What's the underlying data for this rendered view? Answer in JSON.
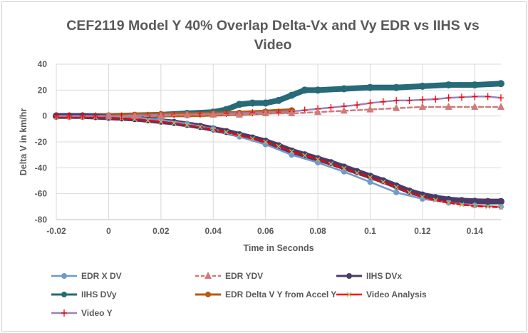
{
  "chart_data": {
    "type": "line",
    "title": "CEF2119 Model Y 40% Overlap Delta-Vx  and Vy EDR vs IIHS vs Video",
    "xlabel": "Time in Seconds",
    "ylabel": "Delta V in km/hr",
    "xlim": [
      -0.02,
      0.15
    ],
    "ylim": [
      -80,
      40
    ],
    "xticks": [
      "-0.02",
      "0",
      "0.02",
      "0.04",
      "0.06",
      "0.08",
      "0.1",
      "0.12",
      "0.14"
    ],
    "xtick_values": [
      -0.02,
      0,
      0.02,
      0.04,
      0.06,
      0.08,
      0.1,
      0.12,
      0.14
    ],
    "yticks": [
      "40",
      "20",
      "0",
      "-20",
      "-40",
      "-60",
      "-80"
    ],
    "ytick_values": [
      40,
      20,
      0,
      -20,
      -40,
      -60,
      -80
    ],
    "grid": true,
    "legend_position": "bottom",
    "series": [
      {
        "name": "EDR X DV",
        "color": "#7099cc",
        "marker": "circle",
        "dash": false,
        "width": 2.5,
        "x": [
          0,
          0.01,
          0.02,
          0.03,
          0.04,
          0.05,
          0.06,
          0.07,
          0.08,
          0.09,
          0.1,
          0.11,
          0.12,
          0.13,
          0.14,
          0.15
        ],
        "y": [
          0,
          -1,
          -3,
          -6,
          -10,
          -16,
          -22,
          -30,
          -36,
          -43,
          -51,
          -59,
          -64,
          -67,
          -69,
          -70
        ]
      },
      {
        "name": "EDR YDV",
        "color": "#d07a7a",
        "marker": "triangle",
        "dash": true,
        "width": 2.5,
        "x": [
          0,
          0.01,
          0.02,
          0.03,
          0.04,
          0.05,
          0.06,
          0.07,
          0.08,
          0.09,
          0.1,
          0.11,
          0.12,
          0.13,
          0.14,
          0.15
        ],
        "y": [
          0,
          0,
          0,
          1,
          1,
          1,
          2,
          2,
          3,
          4,
          5,
          6,
          7,
          7,
          7,
          7
        ]
      },
      {
        "name": "IIHS DVx",
        "color": "#4b3b66",
        "marker": "circle",
        "dash": false,
        "width": 8,
        "x": [
          -0.02,
          -0.015,
          -0.01,
          -0.005,
          0,
          0.005,
          0.01,
          0.015,
          0.02,
          0.025,
          0.03,
          0.035,
          0.04,
          0.045,
          0.05,
          0.055,
          0.06,
          0.065,
          0.07,
          0.075,
          0.08,
          0.085,
          0.09,
          0.095,
          0.1,
          0.105,
          0.11,
          0.115,
          0.12,
          0.125,
          0.13,
          0.135,
          0.14,
          0.145,
          0.15
        ],
        "y": [
          0,
          0,
          0,
          -0.5,
          -1,
          -1.5,
          -2,
          -3,
          -4,
          -5,
          -6.5,
          -8,
          -10,
          -12,
          -14.5,
          -17,
          -19.5,
          -23,
          -27,
          -30,
          -33,
          -36,
          -39.5,
          -43,
          -46.5,
          -50,
          -54,
          -58,
          -61,
          -63,
          -64.5,
          -65.3,
          -65.8,
          -66,
          -66
        ]
      },
      {
        "name": "IIHS DVy",
        "color": "#276a78",
        "marker": "circle",
        "dash": false,
        "width": 8,
        "x": [
          -0.02,
          -0.01,
          0,
          0.01,
          0.02,
          0.03,
          0.04,
          0.045,
          0.05,
          0.055,
          0.06,
          0.065,
          0.07,
          0.075,
          0.08,
          0.09,
          0.1,
          0.11,
          0.12,
          0.13,
          0.14,
          0.15
        ],
        "y": [
          0,
          0,
          0,
          0.5,
          1,
          2,
          3,
          5,
          9,
          10,
          10,
          12,
          16,
          20,
          20,
          21,
          22,
          22,
          23,
          24,
          24,
          25
        ]
      },
      {
        "name": "EDR Delta V Y from Accel Y",
        "color": "#b85a12",
        "marker": "circle",
        "dash": false,
        "width": 7,
        "x": [
          -0.02,
          -0.01,
          0,
          0.01,
          0.02,
          0.03,
          0.04,
          0.05,
          0.06,
          0.07
        ],
        "y": [
          0,
          0,
          0,
          0.5,
          1,
          1,
          1.5,
          2,
          3,
          4
        ]
      },
      {
        "name": "Video Analysis",
        "color": "#ff0000",
        "marker": "x",
        "markerColor": "#a8c070",
        "dash": true,
        "width": 2.5,
        "x": [
          -0.02,
          -0.015,
          -0.01,
          -0.005,
          0,
          0.005,
          0.01,
          0.015,
          0.02,
          0.025,
          0.03,
          0.035,
          0.04,
          0.045,
          0.05,
          0.055,
          0.06,
          0.065,
          0.07,
          0.075,
          0.08,
          0.085,
          0.09,
          0.095,
          0.1,
          0.105,
          0.11,
          0.115,
          0.12,
          0.125,
          0.13,
          0.135,
          0.14,
          0.145,
          0.15
        ],
        "y": [
          -1,
          -1,
          -1,
          -1,
          -1.5,
          -2,
          -2.5,
          -3.5,
          -4.5,
          -5.5,
          -7,
          -8.5,
          -10.5,
          -12.5,
          -15,
          -17.5,
          -20,
          -23.5,
          -27.5,
          -30.5,
          -33.5,
          -37,
          -40.5,
          -44,
          -47.5,
          -51,
          -55,
          -59,
          -62.5,
          -65,
          -67,
          -68.5,
          -69.5,
          -70,
          -70.5
        ]
      },
      {
        "name": "Video Y",
        "color": "#9a82bf",
        "marker": "plus",
        "markerColor": "#ff0000",
        "dash": false,
        "width": 2.5,
        "x": [
          -0.02,
          -0.015,
          -0.01,
          -0.005,
          0,
          0.005,
          0.01,
          0.015,
          0.02,
          0.025,
          0.03,
          0.035,
          0.04,
          0.045,
          0.05,
          0.055,
          0.06,
          0.065,
          0.07,
          0.075,
          0.08,
          0.085,
          0.09,
          0.095,
          0.1,
          0.105,
          0.11,
          0.115,
          0.12,
          0.125,
          0.13,
          0.135,
          0.14,
          0.145,
          0.15
        ],
        "y": [
          0,
          0,
          0,
          0,
          0,
          0,
          0.5,
          0.5,
          1,
          1,
          1,
          1.5,
          1.5,
          2,
          2,
          2.5,
          3,
          3,
          3.5,
          4.5,
          5.5,
          6.5,
          7.5,
          8.5,
          10,
          11,
          12,
          12,
          12.5,
          13,
          14,
          14.5,
          15,
          15,
          14
        ]
      }
    ]
  },
  "title_lines": [
    "CEF2119 Model Y 40% Overlap Delta-Vx  and Vy EDR vs IIHS vs",
    "Video"
  ]
}
